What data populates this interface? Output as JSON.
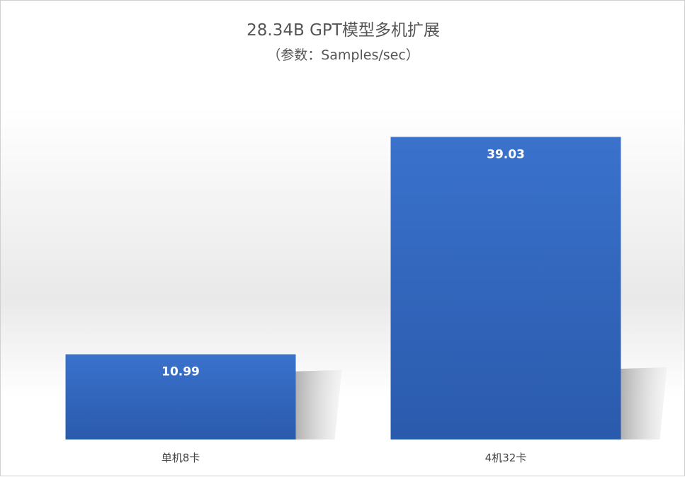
{
  "chart_data": {
    "type": "bar",
    "title": "28.34B GPT模型多机扩展",
    "subtitle": "（参数：Samples/sec）",
    "categories": [
      "单机8卡",
      "4机32卡"
    ],
    "values": [
      10.99,
      39.03
    ],
    "value_labels": [
      "10.99",
      "39.03"
    ],
    "ylim": [
      0,
      44
    ],
    "grid": false,
    "legend": "none",
    "colors": {
      "bar_top": "#3a72cc",
      "bar_bottom": "#2a5aac",
      "text": "#555555",
      "data_label": "#ffffff"
    }
  }
}
